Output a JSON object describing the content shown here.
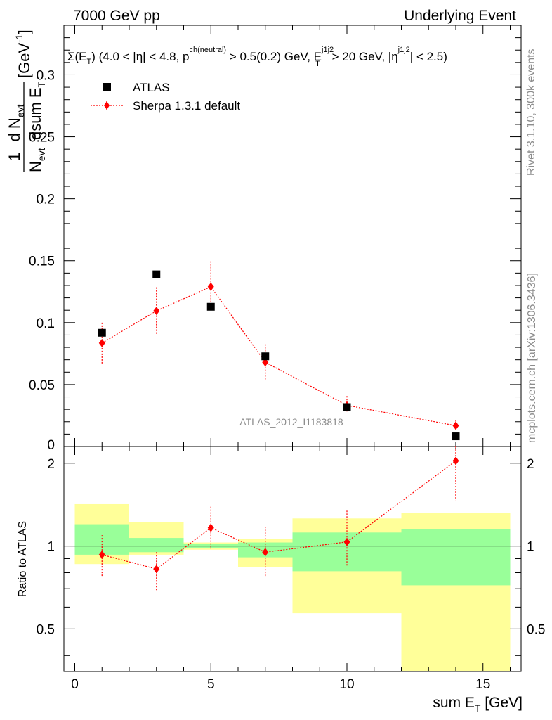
{
  "header": {
    "left": "7000 GeV pp",
    "right": "Underlying Event"
  },
  "side": {
    "rivet": "Rivet 3.1.10,  300k events",
    "mcplots": "mcplots.cern.ch [arXiv:1306.3436]"
  },
  "cuts_label": {
    "a": "Σ(E",
    "a_sub": "T",
    "b": ") (4.0 < |η| < 4.8, p",
    "b_sup": "ch(neutral)",
    "c": " > 0.5(0.2) GeV, E",
    "c_sup": "j1j2",
    "c_sub": "T",
    "d": " > 20 GeV, |η",
    "d_sup": "j1j2",
    "e": "| < 2.5)"
  },
  "analysis_tag": "ATLAS_2012_I1183818",
  "ylabel_main": {
    "frac_num": "1",
    "frac_den": "N",
    "frac_den_sub": "evt",
    "d_num": "d N",
    "d_num_sub": "evt",
    "d_den": "dsum E",
    "d_den_sub": "T",
    "unit": "[GeV",
    "unit_sup": "-1",
    "unit_end": "]"
  },
  "ylabel_ratio": "Ratio to ATLAS",
  "xlabel": {
    "text": "sum E",
    "sub": "T",
    "unit": " [GeV]"
  },
  "legend": [
    {
      "label": "ATLAS",
      "marker": "square",
      "color": "#000000"
    },
    {
      "label": "Sherpa 1.3.1 default",
      "marker": "diamond",
      "color": "#ff0000"
    }
  ],
  "colors": {
    "data": "#000000",
    "mc": "#ff0000",
    "band_inner": "#99ff99",
    "band_outer": "#ffff99"
  },
  "chart_data": {
    "type": "scatter",
    "xlim": [
      -0.4,
      16.4
    ],
    "ylim_main": [
      0,
      0.34
    ],
    "ylim_ratio": [
      0.35,
      2.3
    ],
    "x_ticks": [
      0,
      5,
      10,
      15
    ],
    "y_ticks_main": [
      0.05,
      0.1,
      0.15,
      0.2,
      0.25,
      0.3
    ],
    "y_ticks_main_labels": [
      "0.05",
      "0.1",
      "0.15",
      "0.2",
      "0.25",
      "0.3"
    ],
    "y_ticks_ratio": [
      0.5,
      1,
      2
    ],
    "series": [
      {
        "name": "ATLAS",
        "x": [
          1,
          3,
          5,
          7,
          10,
          14
        ],
        "y": [
          0.0918,
          0.139,
          0.1128,
          0.0728,
          0.0318,
          0.0082
        ]
      },
      {
        "name": "Sherpa 1.3.1 default",
        "x": [
          1,
          3,
          5,
          7,
          10,
          14
        ],
        "y": [
          0.0835,
          0.1095,
          0.129,
          0.068,
          0.0332,
          0.0168
        ],
        "yerr_lo": [
          0.0165,
          0.019,
          0.0185,
          0.0145,
          0.0065,
          0.0045
        ],
        "yerr_hi": [
          0.0165,
          0.019,
          0.0205,
          0.0145,
          0.0075,
          0.0045
        ],
        "ratio": [
          0.93,
          0.825,
          1.165,
          0.95,
          1.035,
          2.04
        ],
        "ratio_lo": [
          0.775,
          0.685,
          0.975,
          0.775,
          0.85,
          1.47
        ],
        "ratio_hi": [
          1.095,
          0.95,
          1.39,
          1.175,
          1.345,
          2.3
        ]
      }
    ],
    "uncertainty_bands": [
      {
        "x_range": [
          0,
          2
        ],
        "inner": [
          0.93,
          1.2
        ],
        "outer": [
          0.86,
          1.42
        ]
      },
      {
        "x_range": [
          2,
          4
        ],
        "inner": [
          0.95,
          1.07
        ],
        "outer": [
          0.93,
          1.22
        ]
      },
      {
        "x_range": [
          4,
          6
        ],
        "inner": [
          0.98,
          1.02
        ],
        "outer": [
          0.97,
          1.03
        ]
      },
      {
        "x_range": [
          6,
          8
        ],
        "inner": [
          0.91,
          1.03
        ],
        "outer": [
          0.84,
          1.06
        ]
      },
      {
        "x_range": [
          8,
          12
        ],
        "inner": [
          0.81,
          1.12
        ],
        "outer": [
          0.57,
          1.26
        ]
      },
      {
        "x_range": [
          12,
          16
        ],
        "inner": [
          0.72,
          1.15
        ],
        "outer": [
          0.35,
          1.32
        ]
      }
    ]
  }
}
